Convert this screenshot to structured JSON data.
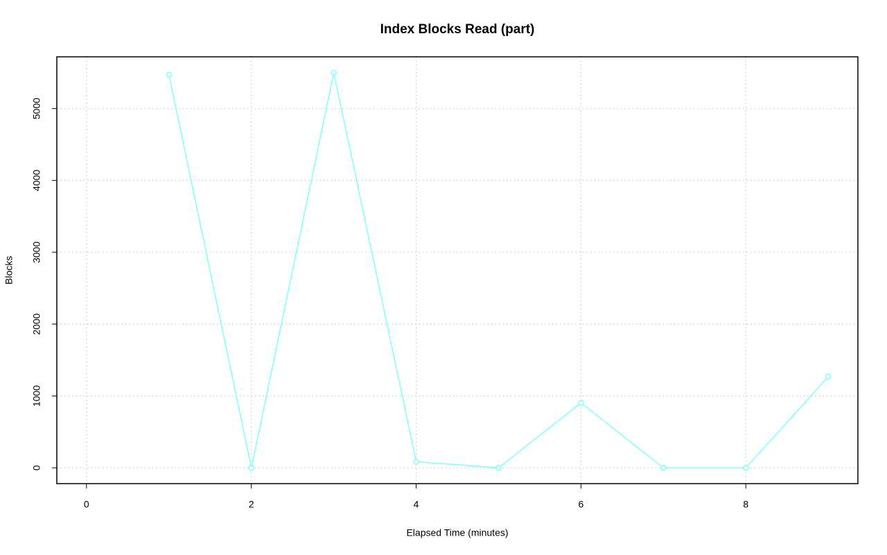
{
  "chart_data": {
    "type": "line",
    "title": "Index Blocks Read (part)",
    "x_label": "Elapsed Time (minutes)",
    "y_label": "Blocks",
    "x": [
      1,
      2,
      3,
      4,
      5,
      6,
      7,
      8,
      9
    ],
    "series": [
      {
        "color": "#80ffff",
        "values": [
          5470,
          0,
          5500,
          85,
          0,
          905,
          0,
          0,
          1270
        ]
      }
    ],
    "xlim": [
      -0.36,
      9.36
    ],
    "xticks": [
      0,
      2,
      4,
      6,
      8
    ],
    "ylim": [
      -220,
      5720
    ],
    "yticks": [
      0,
      1000,
      2000,
      3000,
      4000,
      5000
    ],
    "grid": true
  }
}
